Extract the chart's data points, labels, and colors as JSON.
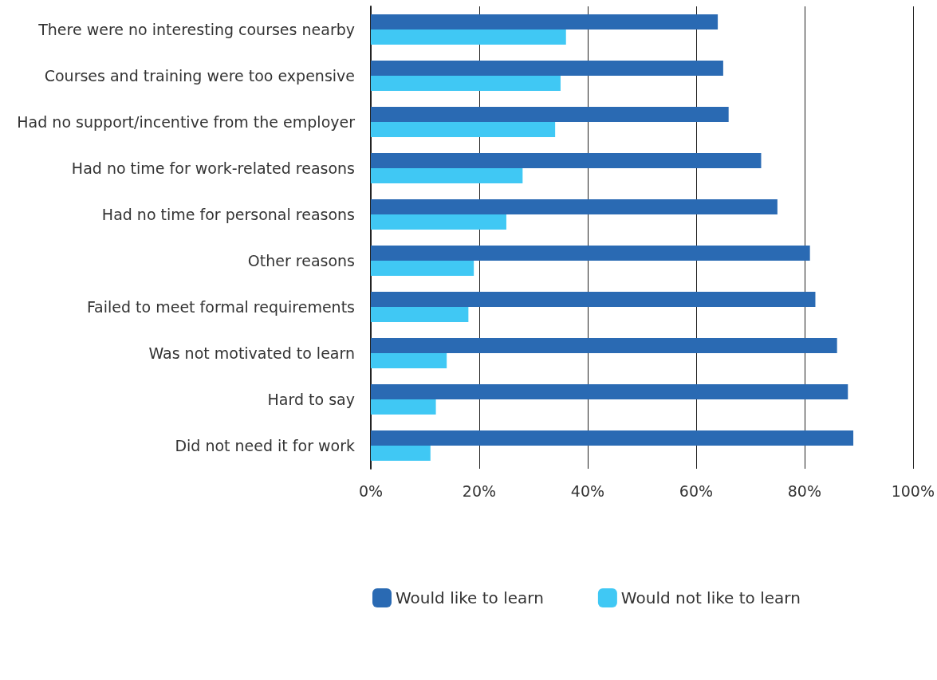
{
  "chart_data": {
    "type": "bar",
    "orientation": "horizontal",
    "categories": [
      "There were no interesting courses nearby",
      "Courses and training were too expensive",
      "Had no support/incentive from the employer",
      "Had no time for work-related reasons",
      "Had no time for personal reasons",
      "Other reasons",
      "Failed to meet formal requirements",
      "Was not motivated to learn",
      "Hard to say",
      "Did not need it for work"
    ],
    "series": [
      {
        "name": "Would like to learn",
        "color": "#2a6ab3",
        "values": [
          64,
          65,
          66,
          72,
          75,
          81,
          82,
          86,
          88,
          89
        ]
      },
      {
        "name": "Would not like to learn",
        "color": "#40c8f4",
        "values": [
          36,
          35,
          34,
          28,
          25,
          19,
          18,
          14,
          12,
          11
        ]
      }
    ],
    "xlim": [
      0,
      100
    ],
    "xticks": [
      {
        "value": 0,
        "label": "0%"
      },
      {
        "value": 20,
        "label": "20%"
      },
      {
        "value": 40,
        "label": "40%"
      },
      {
        "value": 60,
        "label": "60%"
      },
      {
        "value": 80,
        "label": "80%"
      },
      {
        "value": 100,
        "label": "100%"
      }
    ],
    "grid": "x",
    "legend": "bottom left"
  }
}
